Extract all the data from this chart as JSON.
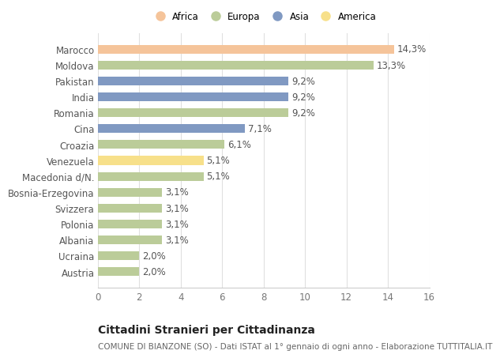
{
  "countries": [
    "Austria",
    "Ucraina",
    "Albania",
    "Polonia",
    "Svizzera",
    "Bosnia-Erzegovina",
    "Macedonia d/N.",
    "Venezuela",
    "Croazia",
    "Cina",
    "Romania",
    "India",
    "Pakistan",
    "Moldova",
    "Marocco"
  ],
  "values": [
    2.0,
    2.0,
    3.1,
    3.1,
    3.1,
    3.1,
    5.1,
    5.1,
    6.1,
    7.1,
    9.2,
    9.2,
    9.2,
    13.3,
    14.3
  ],
  "continents": [
    "Europa",
    "Europa",
    "Europa",
    "Europa",
    "Europa",
    "Europa",
    "Europa",
    "America",
    "Europa",
    "Asia",
    "Europa",
    "Asia",
    "Asia",
    "Europa",
    "Africa"
  ],
  "colors": {
    "Africa": "#F5C49A",
    "Europa": "#BBCC99",
    "Asia": "#8099C2",
    "America": "#F7E08A"
  },
  "legend_order": [
    "Africa",
    "Europa",
    "Asia",
    "America"
  ],
  "xlim": [
    0,
    16
  ],
  "xticks": [
    0,
    2,
    4,
    6,
    8,
    10,
    12,
    14,
    16
  ],
  "title": "Cittadini Stranieri per Cittadinanza",
  "subtitle": "COMUNE DI BIANZONE (SO) - Dati ISTAT al 1° gennaio di ogni anno - Elaborazione TUTTITALIA.IT",
  "background_color": "#ffffff",
  "grid_color": "#e0e0e0",
  "bar_height": 0.55,
  "label_fontsize": 8.5,
  "tick_fontsize": 8.5,
  "title_fontsize": 10,
  "subtitle_fontsize": 7.5
}
